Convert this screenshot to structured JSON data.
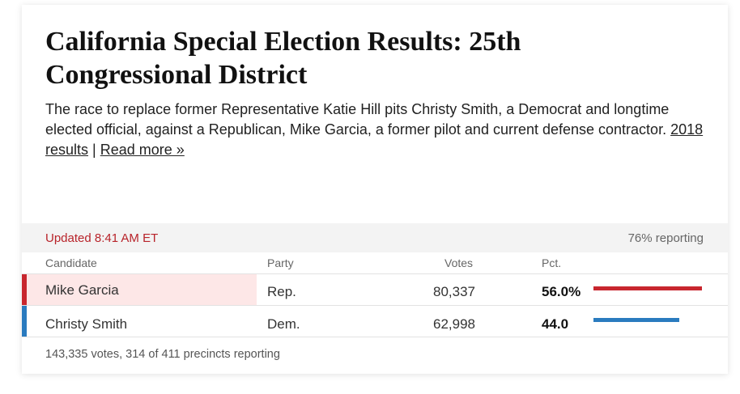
{
  "headline": "California Special Election Results: 25th Congressional District",
  "description": {
    "text": "The race to replace former Representative Katie Hill pits Christy Smith, a Democrat and longtime elected official, against a Republican, Mike Garcia, a former pilot and current defense contractor.",
    "link_2018": "2018 results",
    "separator": "|",
    "link_read_more": "Read more »"
  },
  "status": {
    "updated": "Updated 8:41 AM ET",
    "reporting": "76% reporting"
  },
  "table": {
    "headers": {
      "candidate": "Candidate",
      "party": "Party",
      "votes": "Votes",
      "pct": "Pct."
    },
    "rows": [
      {
        "candidate": "Mike Garcia",
        "party": "Rep.",
        "votes": "80,337",
        "pct": "56.0%",
        "pct_value": 56.0,
        "color": "#c8262e",
        "winner": true
      },
      {
        "candidate": "Christy Smith",
        "party": "Dem.",
        "votes": "62,998",
        "pct": "44.0",
        "pct_value": 44.0,
        "color": "#2a7bbf",
        "winner": false
      }
    ]
  },
  "footer": "143,335 votes, 314 of 411 precincts reporting"
}
